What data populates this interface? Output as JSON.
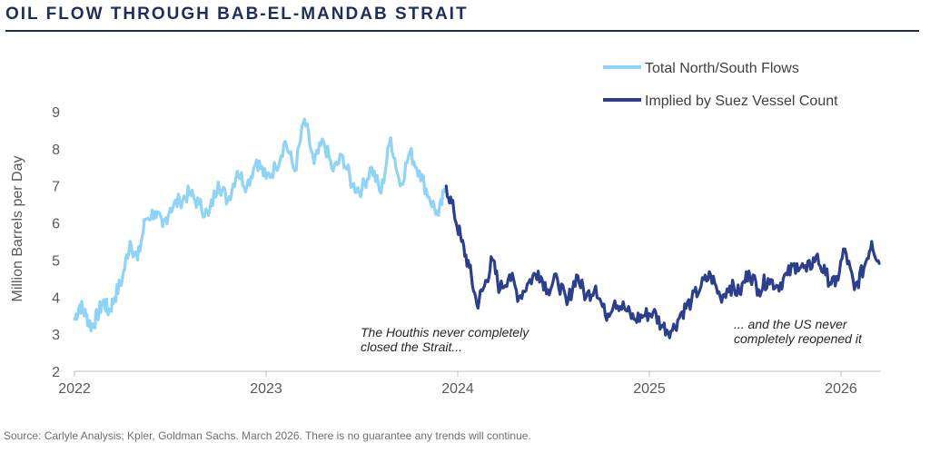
{
  "header": {
    "title": "OIL FLOW THROUGH BAB-EL-MANDAB STRAIT"
  },
  "footer": {
    "source": "Source: Carlyle Analysis; Kpler, Goldman Sachs. March 2026. There is no guarantee any trends will continue."
  },
  "colors": {
    "title": "#1f2d5c",
    "total_flows": "#8fd3f7",
    "implied_suez": "#2b3f8c",
    "axis_text": "#595959"
  },
  "chart_data": {
    "type": "line",
    "title": "OIL FLOW THROUGH BAB-EL-MANDAB STRAIT",
    "xlabel": "",
    "ylabel": "Million Barrels per Day",
    "xlim": [
      2022,
      2026.25
    ],
    "ylim": [
      2,
      9
    ],
    "grid": false,
    "legend_position": "top-right",
    "x_ticks": [
      "2022",
      "2023",
      "2024",
      "2025",
      "2026"
    ],
    "y_ticks": [
      "2",
      "3",
      "4",
      "5",
      "6",
      "7",
      "8",
      "9"
    ],
    "series": [
      {
        "name": "Total North/South Flows",
        "x": [
          2022.0,
          2022.03,
          2022.06,
          2022.09,
          2022.12,
          2022.15,
          2022.18,
          2022.21,
          2022.25,
          2022.29,
          2022.33,
          2022.37,
          2022.42,
          2022.46,
          2022.5,
          2022.55,
          2022.6,
          2022.65,
          2022.7,
          2022.75,
          2022.8,
          2022.85,
          2022.9,
          2022.95,
          2023.0,
          2023.05,
          2023.1,
          2023.15,
          2023.2,
          2023.25,
          2023.3,
          2023.35,
          2023.4,
          2023.45,
          2023.5,
          2023.55,
          2023.6,
          2023.65,
          2023.7,
          2023.75,
          2023.8,
          2023.85,
          2023.9,
          2023.94
        ],
        "values": [
          3.4,
          3.8,
          3.5,
          3.2,
          3.5,
          3.9,
          3.6,
          4.0,
          4.5,
          5.5,
          5.0,
          6.1,
          6.3,
          5.9,
          6.4,
          6.6,
          6.8,
          6.5,
          6.2,
          7.1,
          6.6,
          7.4,
          7.0,
          7.7,
          7.2,
          7.5,
          8.2,
          7.4,
          8.8,
          7.6,
          8.2,
          7.4,
          7.8,
          7.0,
          6.9,
          7.5,
          6.8,
          8.3,
          7.0,
          7.9,
          7.4,
          6.7,
          6.2,
          7.0
        ]
      },
      {
        "name": "Implied by Suez Vessel Count",
        "x": [
          2023.94,
          2023.98,
          2024.02,
          2024.06,
          2024.1,
          2024.14,
          2024.18,
          2024.22,
          2024.27,
          2024.32,
          2024.37,
          2024.42,
          2024.47,
          2024.52,
          2024.57,
          2024.62,
          2024.67,
          2024.72,
          2024.77,
          2024.82,
          2024.87,
          2024.92,
          2024.97,
          2025.02,
          2025.07,
          2025.12,
          2025.17,
          2025.22,
          2025.27,
          2025.32,
          2025.37,
          2025.42,
          2025.47,
          2025.52,
          2025.57,
          2025.62,
          2025.67,
          2025.72,
          2025.77,
          2025.82,
          2025.87,
          2025.92,
          2025.97,
          2026.02,
          2026.07,
          2026.12,
          2026.16,
          2026.2
        ],
        "values": [
          7.0,
          6.3,
          5.5,
          4.8,
          3.8,
          4.3,
          5.0,
          4.2,
          4.6,
          4.0,
          4.4,
          4.7,
          4.2,
          4.5,
          3.8,
          4.6,
          4.0,
          4.3,
          3.5,
          3.9,
          3.7,
          3.4,
          3.5,
          3.6,
          3.2,
          3.1,
          3.6,
          3.9,
          4.3,
          4.6,
          4.0,
          4.3,
          4.1,
          4.7,
          4.2,
          4.5,
          4.3,
          4.6,
          4.9,
          4.7,
          5.1,
          4.6,
          4.3,
          5.3,
          4.2,
          4.8,
          5.5,
          4.9
        ]
      }
    ],
    "annotations": [
      {
        "text": "The Houthis never completely",
        "x": 2023.45,
        "y": 3.0
      },
      {
        "text": "closed the Strait...",
        "x": 2023.45,
        "y": 2.62
      },
      {
        "text": "... and the US never",
        "x": 2025.4,
        "y": 3.23
      },
      {
        "text": "completely reopened it",
        "x": 2025.4,
        "y": 2.85
      }
    ]
  }
}
